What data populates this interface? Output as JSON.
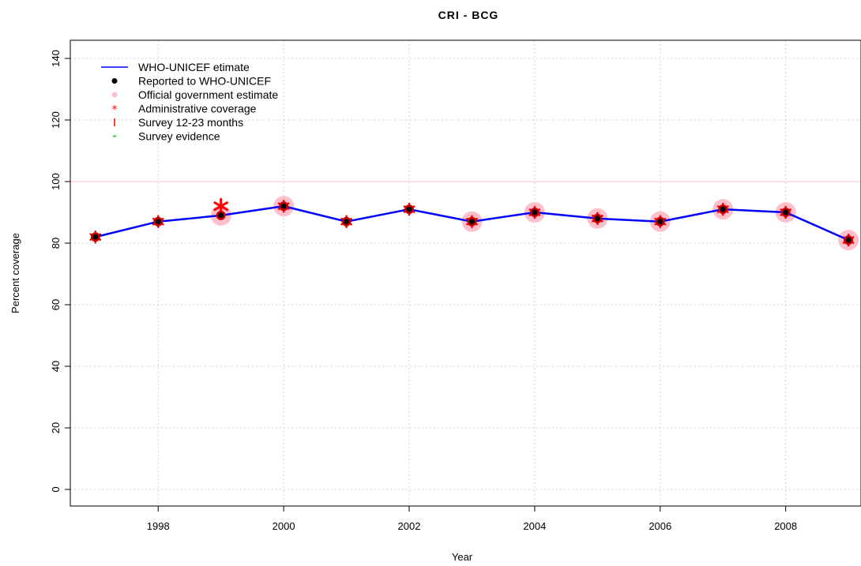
{
  "chart_data": {
    "type": "line",
    "title": "CRI  -  BCG",
    "xlabel": "Year",
    "ylabel": "Percent coverage",
    "xlim": [
      1997,
      2009
    ],
    "ylim": [
      0,
      140
    ],
    "x_ticks": [
      1998,
      2000,
      2002,
      2004,
      2006,
      2008
    ],
    "y_ticks": [
      0,
      20,
      40,
      60,
      80,
      100,
      120,
      140
    ],
    "grid": true,
    "reference_line": {
      "y": 100,
      "color": "#ffc0cb"
    },
    "legend_position": "top-left",
    "legend": [
      {
        "label": "WHO-UNICEF etimate",
        "symbol": "line",
        "color": "#0000ff"
      },
      {
        "label": "Reported to WHO-UNICEF",
        "symbol": "dot",
        "color": "#000000"
      },
      {
        "label": "Official government estimate",
        "symbol": "dot",
        "color": "#ffc0cb"
      },
      {
        "label": "Administrative coverage",
        "symbol": "asterisk",
        "color": "#ff0000"
      },
      {
        "label": "Survey 12-23 months",
        "symbol": "bar",
        "color": "#ff0000"
      },
      {
        "label": "Survey evidence",
        "symbol": "dash",
        "color": "#00cc00"
      }
    ],
    "series": [
      {
        "name": "WHO-UNICEF etimate",
        "color": "#0000ff",
        "x": [
          1997,
          1998,
          1999,
          2000,
          2001,
          2002,
          2003,
          2004,
          2005,
          2006,
          2007,
          2008,
          2009
        ],
        "values": [
          82,
          87,
          89,
          92,
          87,
          91,
          87,
          90,
          88,
          87,
          91,
          90,
          81
        ]
      },
      {
        "name": "Reported to WHO-UNICEF",
        "color": "#000000",
        "x": [
          1997,
          1998,
          1999,
          2000,
          2001,
          2002,
          2003,
          2004,
          2005,
          2006,
          2007,
          2008,
          2009
        ],
        "values": [
          82,
          87,
          89,
          92,
          87,
          91,
          87,
          90,
          88,
          87,
          91,
          90,
          81
        ]
      },
      {
        "name": "Official government estimate",
        "color": "#ffc0cb",
        "x": [
          1999,
          2000,
          2003,
          2004,
          2005,
          2006,
          2007,
          2008,
          2009
        ],
        "values": [
          89,
          92,
          87,
          90,
          88,
          87,
          91,
          90,
          81
        ]
      },
      {
        "name": "Administrative coverage",
        "color": "#ff0000",
        "x": [
          1997,
          1998,
          1999,
          2000,
          2001,
          2002,
          2003,
          2004,
          2005,
          2006,
          2007,
          2008,
          2009
        ],
        "values": [
          82,
          87,
          92,
          92,
          87,
          91,
          87,
          90,
          88,
          87,
          91,
          90,
          81
        ]
      }
    ]
  }
}
